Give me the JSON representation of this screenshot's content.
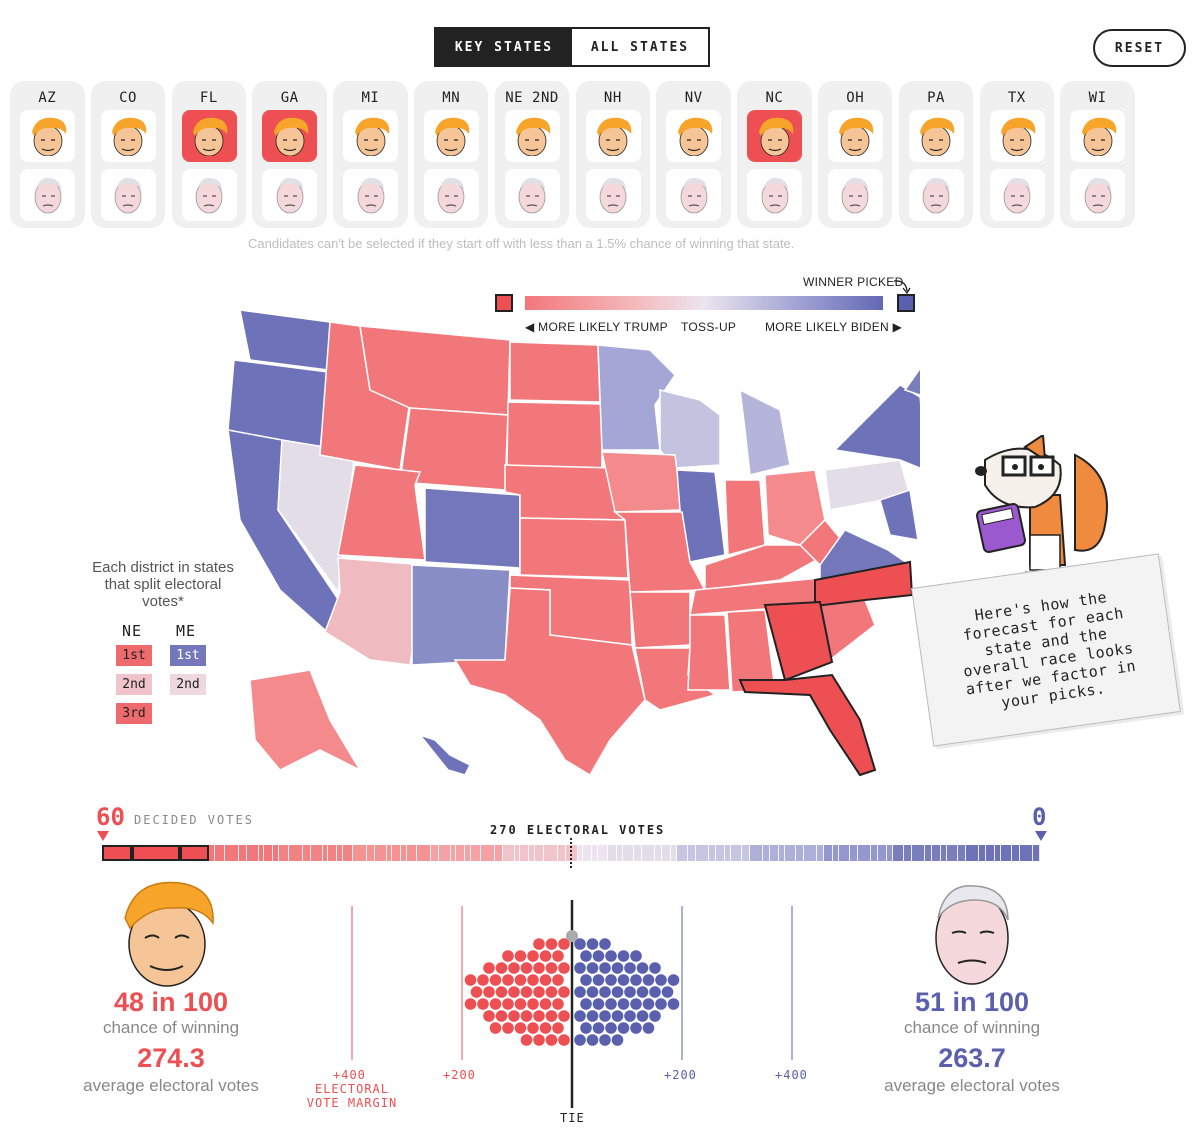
{
  "toggle": {
    "key_states": "KEY STATES",
    "all_states": "ALL STATES"
  },
  "reset_label": "RESET",
  "states": [
    {
      "abbr": "AZ",
      "picked": "none"
    },
    {
      "abbr": "CO",
      "picked": "none"
    },
    {
      "abbr": "FL",
      "picked": "trump"
    },
    {
      "abbr": "GA",
      "picked": "trump"
    },
    {
      "abbr": "MI",
      "picked": "none"
    },
    {
      "abbr": "MN",
      "picked": "none"
    },
    {
      "abbr": "NE 2ND",
      "picked": "none"
    },
    {
      "abbr": "NH",
      "picked": "none"
    },
    {
      "abbr": "NV",
      "picked": "none"
    },
    {
      "abbr": "NC",
      "picked": "trump"
    },
    {
      "abbr": "OH",
      "picked": "none"
    },
    {
      "abbr": "PA",
      "picked": "none"
    },
    {
      "abbr": "TX",
      "picked": "none"
    },
    {
      "abbr": "WI",
      "picked": "none"
    }
  ],
  "selection_note": "Candidates can't be selected if they start off with less than a 1.5% chance of winning that state.",
  "legend": {
    "winner_picked": "WINNER PICKED",
    "more_likely_trump": "MORE LIKELY TRUMP",
    "toss_up": "TOSS-UP",
    "more_likely_biden": "MORE LIKELY BIDEN"
  },
  "district_legend": {
    "title": "Each district in states that split electoral votes*",
    "ne": {
      "label": "NE",
      "districts": [
        "1st",
        "2nd",
        "3rd"
      ]
    },
    "me": {
      "label": "ME",
      "districts": [
        "1st",
        "2nd"
      ]
    }
  },
  "fox_message": "Here's how the forecast for each state and the overall race looks after we factor in your picks.",
  "electoral_bar": {
    "trump_decided": "60",
    "decided_label": "DECIDED VOTES",
    "biden_decided": "0",
    "center_label": "270 ELECTORAL VOTES"
  },
  "trump": {
    "chance": "48 in 100",
    "chance_label": "chance of winning",
    "avg_ev": "274.3",
    "avg_ev_label": "average electoral votes"
  },
  "biden": {
    "chance": "51 in 100",
    "chance_label": "chance of winning",
    "avg_ev": "263.7",
    "avg_ev_label": "average electoral votes"
  },
  "margin_axis": {
    "left_400": "+400",
    "left_200": "+200",
    "right_200": "+200",
    "right_400": "+400",
    "axis_title": "ELECTORAL VOTE MARGIN",
    "tie": "TIE"
  },
  "colors": {
    "trump": "#ee4f52",
    "biden": "#5a5fae",
    "likely_trump": "#f2777a",
    "likely_biden": "#6e72b8",
    "tossup": "#e3dde8"
  },
  "icons": [
    "trump-face-icon",
    "biden-face-icon",
    "fox-mascot-icon",
    "calculator-icon"
  ]
}
